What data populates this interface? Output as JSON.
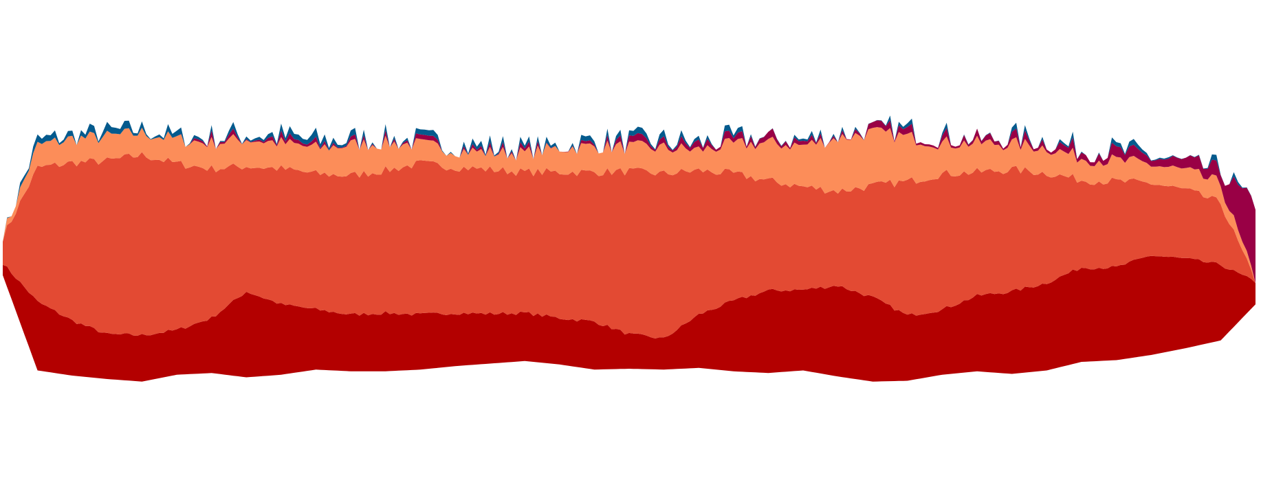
{
  "chart_data": {
    "type": "area",
    "variant": "streamgraph",
    "axes_visible": false,
    "grid": false,
    "legend": "none",
    "x": [
      0,
      50,
      100,
      150,
      200,
      250,
      300,
      350,
      400,
      450,
      500,
      550,
      600,
      650,
      700,
      750,
      800,
      850,
      900,
      950,
      1000,
      1050,
      1100,
      1150,
      1200,
      1250,
      1300,
      1350,
      1400,
      1450,
      1500,
      1550,
      1600,
      1650,
      1700,
      1750,
      1800
    ],
    "series": [
      {
        "color": "#b30000",
        "values": [
          0.35,
          2.0,
          1.6,
          1.3,
          1.35,
          1.3,
          1.6,
          2.5,
          2.05,
          1.75,
          1.65,
          1.7,
          1.6,
          1.55,
          1.45,
          1.4,
          1.35,
          1.4,
          1.0,
          0.9,
          1.55,
          2.05,
          2.4,
          2.35,
          2.65,
          2.45,
          1.9,
          1.9,
          2.2,
          2.4,
          2.55,
          2.75,
          2.7,
          2.9,
          2.6,
          2.2,
          0.65
        ]
      },
      {
        "color": "#e34a33",
        "values": [
          0.75,
          3.9,
          4.6,
          5.05,
          5.25,
          4.85,
          4.35,
          3.65,
          3.95,
          3.95,
          4.05,
          4.15,
          4.4,
          4.25,
          4.2,
          4.1,
          4.25,
          4.35,
          4.75,
          4.8,
          4.2,
          3.7,
          3.2,
          3.0,
          2.75,
          3.25,
          3.9,
          3.95,
          3.6,
          3.55,
          3.2,
          2.55,
          2.5,
          2.1,
          2.0,
          1.8,
          0.0
        ]
      },
      {
        "color": "#fc8d59",
        "values": [
          0.05,
          0.65,
          0.7,
          0.7,
          0.65,
          0.7,
          0.75,
          0.8,
          0.75,
          0.75,
          0.9,
          0.8,
          0.55,
          0.5,
          0.5,
          0.55,
          0.7,
          0.75,
          0.7,
          0.75,
          0.6,
          0.85,
          1.1,
          1.2,
          1.55,
          1.55,
          1.3,
          0.9,
          0.85,
          0.75,
          0.75,
          0.65,
          0.6,
          0.55,
          0.55,
          0.55,
          0.0
        ]
      },
      {
        "color": "#990045",
        "values": [
          0.0,
          0.0,
          0.0,
          0.0,
          0.0,
          0.0,
          0.1,
          0.05,
          0.1,
          0.05,
          0.05,
          0.05,
          0.05,
          0.05,
          0.05,
          0.05,
          0.0,
          0.05,
          0.1,
          0.1,
          0.15,
          0.1,
          0.15,
          0.1,
          0.05,
          0.1,
          0.15,
          0.15,
          0.1,
          0.15,
          0.15,
          0.2,
          0.25,
          0.2,
          0.25,
          0.35,
          2.2
        ]
      },
      {
        "color": "#045a8d",
        "values": [
          0.0,
          0.15,
          0.1,
          0.15,
          0.1,
          0.1,
          0.05,
          0.1,
          0.1,
          0.15,
          0.1,
          0.05,
          0.05,
          0.1,
          0.1,
          0.05,
          0.05,
          0.1,
          0.05,
          0.1,
          0.05,
          0.05,
          0.0,
          0.05,
          0.05,
          0.0,
          0.05,
          0.05,
          0.0,
          0.05,
          0.05,
          0.05,
          0.05,
          0.05,
          0.0,
          0.05,
          0.0
        ]
      }
    ]
  }
}
